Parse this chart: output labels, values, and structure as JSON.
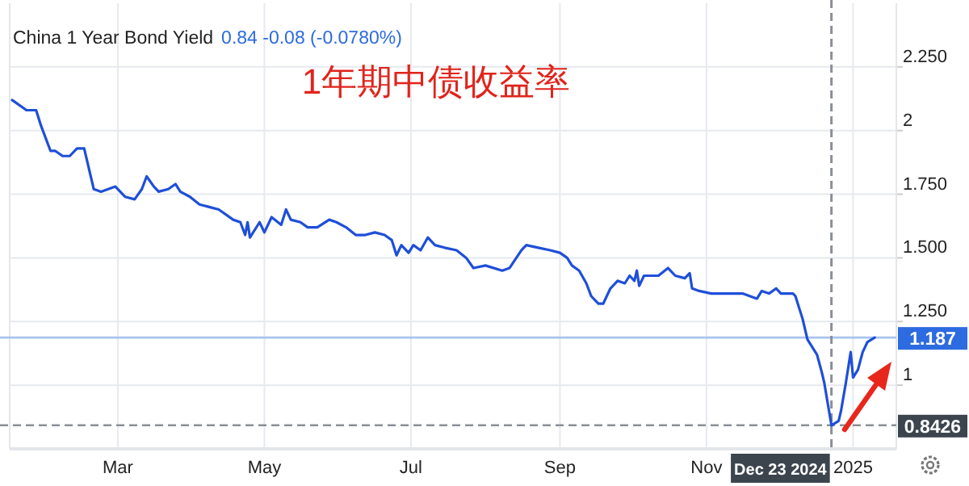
{
  "chart_data": {
    "type": "line",
    "title": "China 1 Year Bond Yield",
    "subtitle": "0.84  -0.08 (-0.0780%)",
    "annotations": [
      "1年期中债收益率"
    ],
    "color": "#1f4fd8",
    "grid": true,
    "marker": "none",
    "line_style": "solid",
    "xlim": [
      "2024-01-16",
      "2025-01-19"
    ],
    "xticks": [
      {
        "value": "2024-03-01",
        "label": "Mar"
      },
      {
        "value": "2024-05-01",
        "label": "May"
      },
      {
        "value": "2024-07-01",
        "label": "Jul"
      },
      {
        "value": "2024-09-01",
        "label": "Sep"
      },
      {
        "value": "2024-11-01",
        "label": "Nov"
      },
      {
        "value": "2025-01-01",
        "label": "2025"
      }
    ],
    "ylim": [
      0.75,
      2.5
    ],
    "yticks": [
      1,
      {
        "value": 1.25,
        "label": "1.250"
      },
      {
        "value": 1.5,
        "label": "1.500"
      },
      {
        "value": 1.75,
        "label": "1.750"
      },
      2,
      {
        "value": 2.25,
        "label": "2.250"
      }
    ],
    "x": [
      "2024-01-17",
      "2024-01-23",
      "2024-01-27",
      "2024-01-29",
      "2024-02-02",
      "2024-02-04",
      "2024-02-07",
      "2024-02-10",
      "2024-02-13",
      "2024-02-16",
      "2024-02-20",
      "2024-02-23",
      "2024-02-29",
      "2024-03-04",
      "2024-03-08",
      "2024-03-11",
      "2024-03-13",
      "2024-03-16",
      "2024-03-18",
      "2024-03-22",
      "2024-03-25",
      "2024-03-27",
      "2024-03-31",
      "2024-04-04",
      "2024-04-08",
      "2024-04-12",
      "2024-04-18",
      "2024-04-21",
      "2024-04-23",
      "2024-04-24",
      "2024-04-25",
      "2024-04-29",
      "2024-05-01",
      "2024-05-04",
      "2024-05-08",
      "2024-05-10",
      "2024-05-12",
      "2024-05-16",
      "2024-05-19",
      "2024-05-23",
      "2024-05-28",
      "2024-05-31",
      "2024-06-04",
      "2024-06-08",
      "2024-06-12",
      "2024-06-16",
      "2024-06-20",
      "2024-06-23",
      "2024-06-25",
      "2024-06-27",
      "2024-06-30",
      "2024-07-02",
      "2024-07-05",
      "2024-07-08",
      "2024-07-11",
      "2024-07-15",
      "2024-07-20",
      "2024-07-24",
      "2024-07-27",
      "2024-08-01",
      "2024-08-08",
      "2024-08-11",
      "2024-08-16",
      "2024-08-18",
      "2024-08-23",
      "2024-08-28",
      "2024-09-01",
      "2024-09-04",
      "2024-09-06",
      "2024-09-09",
      "2024-09-12",
      "2024-09-14",
      "2024-09-17",
      "2024-09-19",
      "2024-09-22",
      "2024-09-25",
      "2024-09-28",
      "2024-09-30",
      "2024-10-02",
      "2024-10-03",
      "2024-10-04",
      "2024-10-06",
      "2024-10-12",
      "2024-10-16",
      "2024-10-19",
      "2024-10-23",
      "2024-10-25",
      "2024-10-26",
      "2024-10-29",
      "2024-11-03",
      "2024-11-07",
      "2024-11-11",
      "2024-11-16",
      "2024-11-22",
      "2024-11-24",
      "2024-11-27",
      "2024-11-30",
      "2024-12-02",
      "2024-12-07",
      "2024-12-08",
      "2024-12-11",
      "2024-12-13",
      "2024-12-17",
      "2024-12-19",
      "2024-12-20",
      "2024-12-23",
      "2024-12-26",
      "2024-12-27",
      "2024-12-29",
      "2024-12-31",
      "2025-01-01",
      "2025-01-03",
      "2025-01-05",
      "2025-01-07",
      "2025-01-10"
    ],
    "values": [
      2.12,
      2.08,
      2.08,
      2.02,
      1.92,
      1.92,
      1.9,
      1.9,
      1.93,
      1.93,
      1.77,
      1.76,
      1.78,
      1.74,
      1.73,
      1.77,
      1.82,
      1.78,
      1.76,
      1.77,
      1.79,
      1.76,
      1.74,
      1.71,
      1.7,
      1.69,
      1.65,
      1.64,
      1.59,
      1.64,
      1.58,
      1.64,
      1.6,
      1.66,
      1.63,
      1.69,
      1.65,
      1.64,
      1.62,
      1.62,
      1.65,
      1.64,
      1.62,
      1.59,
      1.59,
      1.6,
      1.59,
      1.57,
      1.51,
      1.55,
      1.52,
      1.55,
      1.53,
      1.58,
      1.55,
      1.54,
      1.53,
      1.5,
      1.46,
      1.47,
      1.45,
      1.46,
      1.53,
      1.55,
      1.54,
      1.53,
      1.52,
      1.5,
      1.47,
      1.45,
      1.4,
      1.35,
      1.32,
      1.32,
      1.38,
      1.41,
      1.4,
      1.43,
      1.41,
      1.45,
      1.39,
      1.43,
      1.43,
      1.46,
      1.43,
      1.42,
      1.44,
      1.38,
      1.37,
      1.36,
      1.36,
      1.36,
      1.36,
      1.34,
      1.37,
      1.36,
      1.38,
      1.36,
      1.36,
      1.35,
      1.26,
      1.18,
      1.12,
      1.05,
      1.01,
      0.8426,
      0.86,
      0.9,
      1.01,
      1.13,
      1.03,
      1.06,
      1.13,
      1.17,
      1.187
    ],
    "ref_lines": [
      {
        "axis": "y",
        "value": 1.187,
        "label": "1.187",
        "color": "#a9c3ec",
        "line_style": "solid"
      },
      {
        "axis": "y",
        "value": 0.8426,
        "label": "0.8426",
        "color": "#8a8f96",
        "line_style": "dashed"
      },
      {
        "axis": "x",
        "value": "2024-12-23",
        "label": "Dec 23 2024",
        "color": "#8a8f96",
        "line_style": "dashed"
      }
    ]
  }
}
